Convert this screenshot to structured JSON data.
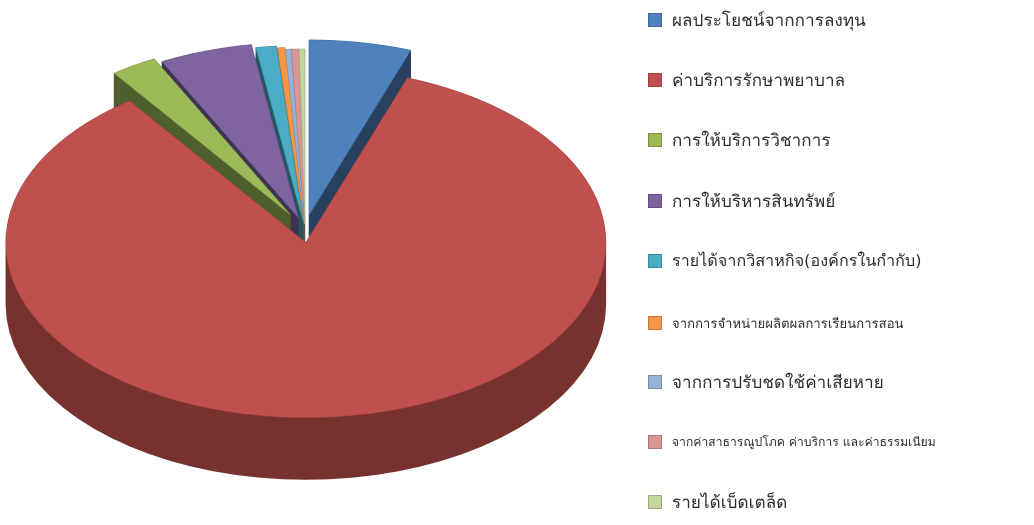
{
  "chart_data": {
    "type": "pie",
    "style": "3d-exploded",
    "legend_position": "right",
    "title": "",
    "slices": [
      {
        "label": "ผลประโยชน์จากการลงทุน",
        "value": 5.5,
        "color": "#4F81BD"
      },
      {
        "label": "ค่าบริการรักษาพยาบาล",
        "value": 84.5,
        "color": "#C0504D"
      },
      {
        "label": "การให้บริการวิชาการ",
        "value": 2.5,
        "color": "#9BBB59"
      },
      {
        "label": "การให้บริหารสินทรัพย์",
        "value": 5.0,
        "color": "#8064A2"
      },
      {
        "label": "รายได้จากวิสาหกิจ(องค์กรในกำกับ)",
        "value": 1.1,
        "color": "#4BACC6"
      },
      {
        "label": "จากการจำหน่ายผลิตผลการเรียนการสอน",
        "value": 0.4,
        "color": "#F79646"
      },
      {
        "label": "จากการปรับชดใช้ค่าเสียหาย",
        "value": 0.3,
        "color": "#95B3D7"
      },
      {
        "label": "จากค่าสาธารณูปโภค ค่าบริการ และค่าธรรมเนียม",
        "value": 0.4,
        "color": "#D99694"
      },
      {
        "label": "รายได้เบ็ดเตล็ด",
        "value": 0.3,
        "color": "#C3D69B"
      }
    ]
  }
}
